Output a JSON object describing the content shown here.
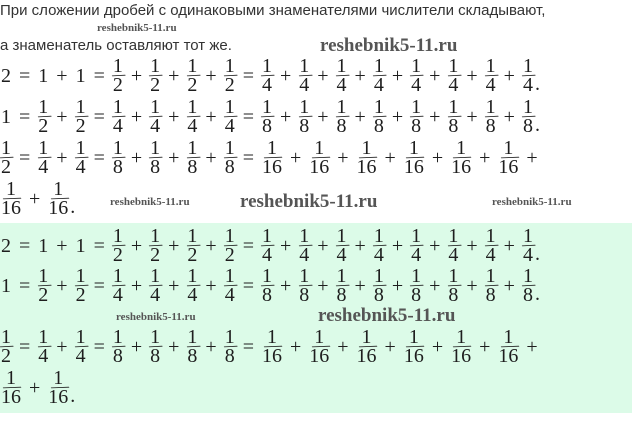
{
  "intro": {
    "line1": "При сложении дробей с одинаковыми знаменателями числители складывают,",
    "line2": "а знаменатель оставляют тот же."
  },
  "equations": [
    [
      "2",
      "=",
      "1",
      "+",
      "1",
      "=",
      "1/2",
      "+",
      "1/2",
      "+",
      "1/2",
      "+",
      "1/2",
      "=",
      "1/4",
      "+",
      "1/4",
      "+",
      "1/4",
      "+",
      "1/4",
      "+",
      "1/4",
      "+",
      "1/4",
      "+",
      "1/4",
      "+",
      "1/4",
      "."
    ],
    [
      "1",
      "=",
      "1/2",
      "+",
      "1/2",
      "=",
      "1/4",
      "+",
      "1/4",
      "+",
      "1/4",
      "+",
      "1/4",
      "=",
      "1/8",
      "+",
      "1/8",
      "+",
      "1/8",
      "+",
      "1/8",
      "+",
      "1/8",
      "+",
      "1/8",
      "+",
      "1/8",
      "+",
      "1/8",
      "."
    ],
    [
      "1/2",
      "=",
      "1/4",
      "+",
      "1/4",
      "=",
      "1/8",
      "+",
      "1/8",
      "+",
      "1/8",
      "+",
      "1/8",
      "=",
      "1/16",
      "+",
      "1/16",
      "+",
      "1/16",
      "+",
      "1/16",
      "+",
      "1/16",
      "+",
      "1/16",
      "+"
    ],
    [
      "1/16",
      "+",
      "1/16",
      "."
    ]
  ],
  "highlight_colors": {
    "background": "#dcfbe8"
  },
  "watermark": "reshebnik5-11.ru"
}
